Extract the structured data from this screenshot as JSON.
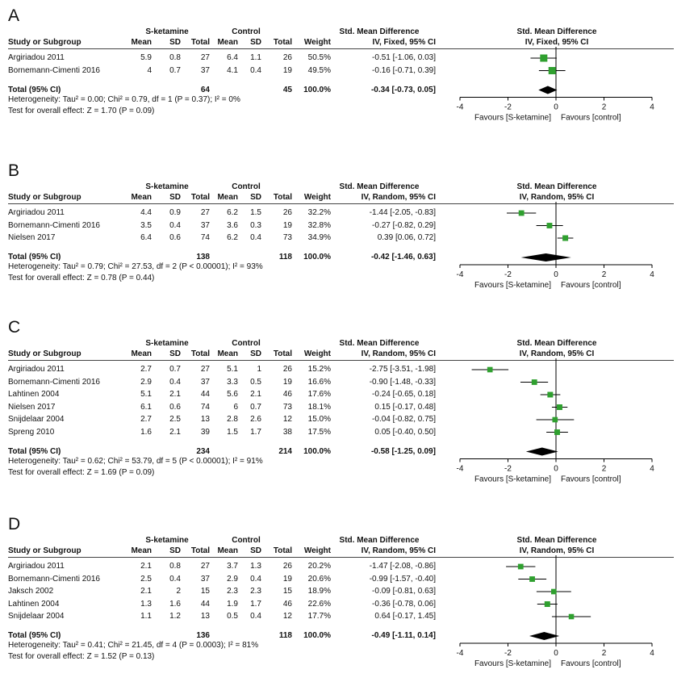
{
  "headers": {
    "group1": "S-ketamine",
    "group2": "Control",
    "smd": "Std. Mean Difference",
    "study": "Study or Subgroup",
    "mean": "Mean",
    "sd": "SD",
    "total": "Total",
    "weight": "Weight"
  },
  "colors": {
    "marker": "#2fa02f",
    "diamond": "#000000"
  },
  "chart_data": [
    {
      "type": "forest",
      "label": "A",
      "method": "IV, Fixed, 95% CI",
      "studies": [
        {
          "name": "Argiriadou 2011",
          "m1": "5.9",
          "sd1": "0.8",
          "n1": "27",
          "m2": "6.4",
          "sd2": "1.1",
          "n2": "26",
          "weight": "50.5%",
          "ci": "-0.51 [-1.06, 0.03]",
          "est": -0.51,
          "lo": -1.06,
          "hi": 0.03,
          "w": 50.5
        },
        {
          "name": "Bornemann-Cimenti 2016",
          "m1": "4",
          "sd1": "0.7",
          "n1": "37",
          "m2": "4.1",
          "sd2": "0.4",
          "n2": "19",
          "weight": "49.5%",
          "ci": "-0.16 [-0.71, 0.39]",
          "est": -0.16,
          "lo": -0.71,
          "hi": 0.39,
          "w": 49.5
        }
      ],
      "total": {
        "label": "Total (95% CI)",
        "n1": "64",
        "n2": "45",
        "weight": "100.0%",
        "ci": "-0.34 [-0.73, 0.05]",
        "est": -0.34,
        "lo": -0.73,
        "hi": 0.05
      },
      "heterogeneity": "Heterogeneity: Tau² = 0.00; Chi² = 0.79, df = 1 (P = 0.37); I² = 0%",
      "overall": "Test for overall effect: Z = 1.70 (P = 0.09)",
      "xlim": [
        -4,
        4
      ],
      "ticks": [
        "-4",
        "-2",
        "0",
        "2",
        "4"
      ],
      "favours_left": "Favours [S-ketamine]",
      "favours_right": "Favours [control]"
    },
    {
      "type": "forest",
      "label": "B",
      "method": "IV, Random, 95% CI",
      "studies": [
        {
          "name": "Argiriadou 2011",
          "m1": "4.4",
          "sd1": "0.9",
          "n1": "27",
          "m2": "6.2",
          "sd2": "1.5",
          "n2": "26",
          "weight": "32.2%",
          "ci": "-1.44 [-2.05, -0.83]",
          "est": -1.44,
          "lo": -2.05,
          "hi": -0.83,
          "w": 32.2
        },
        {
          "name": "Bornemann-Cimenti 2016",
          "m1": "3.5",
          "sd1": "0.4",
          "n1": "37",
          "m2": "3.6",
          "sd2": "0.3",
          "n2": "19",
          "weight": "32.8%",
          "ci": "-0.27 [-0.82, 0.29]",
          "est": -0.27,
          "lo": -0.82,
          "hi": 0.29,
          "w": 32.8
        },
        {
          "name": "Nielsen 2017",
          "m1": "6.4",
          "sd1": "0.6",
          "n1": "74",
          "m2": "6.2",
          "sd2": "0.4",
          "n2": "73",
          "weight": "34.9%",
          "ci": "0.39 [0.06, 0.72]",
          "est": 0.39,
          "lo": 0.06,
          "hi": 0.72,
          "w": 34.9
        }
      ],
      "total": {
        "label": "Total (95% CI)",
        "n1": "138",
        "n2": "118",
        "weight": "100.0%",
        "ci": "-0.42 [-1.46, 0.63]",
        "est": -0.42,
        "lo": -1.46,
        "hi": 0.63
      },
      "heterogeneity": "Heterogeneity: Tau² = 0.79; Chi² = 27.53, df = 2 (P < 0.00001); I² = 93%",
      "overall": "Test for overall effect: Z = 0.78 (P = 0.44)",
      "xlim": [
        -4,
        4
      ],
      "ticks": [
        "-4",
        "-2",
        "0",
        "2",
        "4"
      ],
      "favours_left": "Favours [S-ketamine]",
      "favours_right": "Favours [control]"
    },
    {
      "type": "forest",
      "label": "C",
      "method": "IV, Random, 95% CI",
      "studies": [
        {
          "name": "Argiriadou 2011",
          "m1": "2.7",
          "sd1": "0.7",
          "n1": "27",
          "m2": "5.1",
          "sd2": "1",
          "n2": "26",
          "weight": "15.2%",
          "ci": "-2.75 [-3.51, -1.98]",
          "est": -2.75,
          "lo": -3.51,
          "hi": -1.98,
          "w": 15.2
        },
        {
          "name": "Bornemann-Cimenti 2016",
          "m1": "2.9",
          "sd1": "0.4",
          "n1": "37",
          "m2": "3.3",
          "sd2": "0.5",
          "n2": "19",
          "weight": "16.6%",
          "ci": "-0.90 [-1.48, -0.33]",
          "est": -0.9,
          "lo": -1.48,
          "hi": -0.33,
          "w": 16.6
        },
        {
          "name": "Lahtinen 2004",
          "m1": "5.1",
          "sd1": "2.1",
          "n1": "44",
          "m2": "5.6",
          "sd2": "2.1",
          "n2": "46",
          "weight": "17.6%",
          "ci": "-0.24 [-0.65, 0.18]",
          "est": -0.24,
          "lo": -0.65,
          "hi": 0.18,
          "w": 17.6
        },
        {
          "name": "Nielsen 2017",
          "m1": "6.1",
          "sd1": "0.6",
          "n1": "74",
          "m2": "6",
          "sd2": "0.7",
          "n2": "73",
          "weight": "18.1%",
          "ci": "0.15 [-0.17, 0.48]",
          "est": 0.15,
          "lo": -0.17,
          "hi": 0.48,
          "w": 18.1
        },
        {
          "name": "Snijdelaar 2004",
          "m1": "2.7",
          "sd1": "2.5",
          "n1": "13",
          "m2": "2.8",
          "sd2": "2.6",
          "n2": "12",
          "weight": "15.0%",
          "ci": "-0.04 [-0.82, 0.75]",
          "est": -0.04,
          "lo": -0.82,
          "hi": 0.75,
          "w": 15.0
        },
        {
          "name": "Spreng 2010",
          "m1": "1.6",
          "sd1": "2.1",
          "n1": "39",
          "m2": "1.5",
          "sd2": "1.7",
          "n2": "38",
          "weight": "17.5%",
          "ci": "0.05 [-0.40, 0.50]",
          "est": 0.05,
          "lo": -0.4,
          "hi": 0.5,
          "w": 17.5
        }
      ],
      "total": {
        "label": "Total (95% CI)",
        "n1": "234",
        "n2": "214",
        "weight": "100.0%",
        "ci": "-0.58 [-1.25, 0.09]",
        "est": -0.58,
        "lo": -1.25,
        "hi": 0.09
      },
      "heterogeneity": "Heterogeneity: Tau² = 0.62; Chi² = 53.79, df = 5 (P < 0.00001); I² = 91%",
      "overall": "Test for overall effect: Z = 1.69 (P = 0.09)",
      "xlim": [
        -4,
        4
      ],
      "ticks": [
        "-4",
        "-2",
        "0",
        "2",
        "4"
      ],
      "favours_left": "Favours [S-ketamine]",
      "favours_right": "Favours [control]"
    },
    {
      "type": "forest",
      "label": "D",
      "method": "IV, Random, 95% CI",
      "studies": [
        {
          "name": "Argiriadou 2011",
          "m1": "2.1",
          "sd1": "0.8",
          "n1": "27",
          "m2": "3.7",
          "sd2": "1.3",
          "n2": "26",
          "weight": "20.2%",
          "ci": "-1.47 [-2.08, -0.86]",
          "est": -1.47,
          "lo": -2.08,
          "hi": -0.86,
          "w": 20.2
        },
        {
          "name": "Bornemann-Cimenti 2016",
          "m1": "2.5",
          "sd1": "0.4",
          "n1": "37",
          "m2": "2.9",
          "sd2": "0.4",
          "n2": "19",
          "weight": "20.6%",
          "ci": "-0.99 [-1.57, -0.40]",
          "est": -0.99,
          "lo": -1.57,
          "hi": -0.4,
          "w": 20.6
        },
        {
          "name": "Jaksch 2002",
          "m1": "2.1",
          "sd1": "2",
          "n1": "15",
          "m2": "2.3",
          "sd2": "2.3",
          "n2": "15",
          "weight": "18.9%",
          "ci": "-0.09 [-0.81, 0.63]",
          "est": -0.09,
          "lo": -0.81,
          "hi": 0.63,
          "w": 18.9
        },
        {
          "name": "Lahtinen 2004",
          "m1": "1.3",
          "sd1": "1.6",
          "n1": "44",
          "m2": "1.9",
          "sd2": "1.7",
          "n2": "46",
          "weight": "22.6%",
          "ci": "-0.36 [-0.78, 0.06]",
          "est": -0.36,
          "lo": -0.78,
          "hi": 0.06,
          "w": 22.6
        },
        {
          "name": "Snijdelaar 2004",
          "m1": "1.1",
          "sd1": "1.2",
          "n1": "13",
          "m2": "0.5",
          "sd2": "0.4",
          "n2": "12",
          "weight": "17.7%",
          "ci": "0.64 [-0.17, 1.45]",
          "est": 0.64,
          "lo": -0.17,
          "hi": 1.45,
          "w": 17.7
        }
      ],
      "total": {
        "label": "Total (95% CI)",
        "n1": "136",
        "n2": "118",
        "weight": "100.0%",
        "ci": "-0.49 [-1.11, 0.14]",
        "est": -0.49,
        "lo": -1.11,
        "hi": 0.14
      },
      "heterogeneity": "Heterogeneity: Tau² = 0.41; Chi² = 21.45, df = 4 (P = 0.0003); I² = 81%",
      "overall": "Test for overall effect: Z = 1.52 (P = 0.13)",
      "xlim": [
        -4,
        4
      ],
      "ticks": [
        "-4",
        "-2",
        "0",
        "2",
        "4"
      ],
      "favours_left": "Favours [S-ketamine]",
      "favours_right": "Favours [control]"
    }
  ]
}
